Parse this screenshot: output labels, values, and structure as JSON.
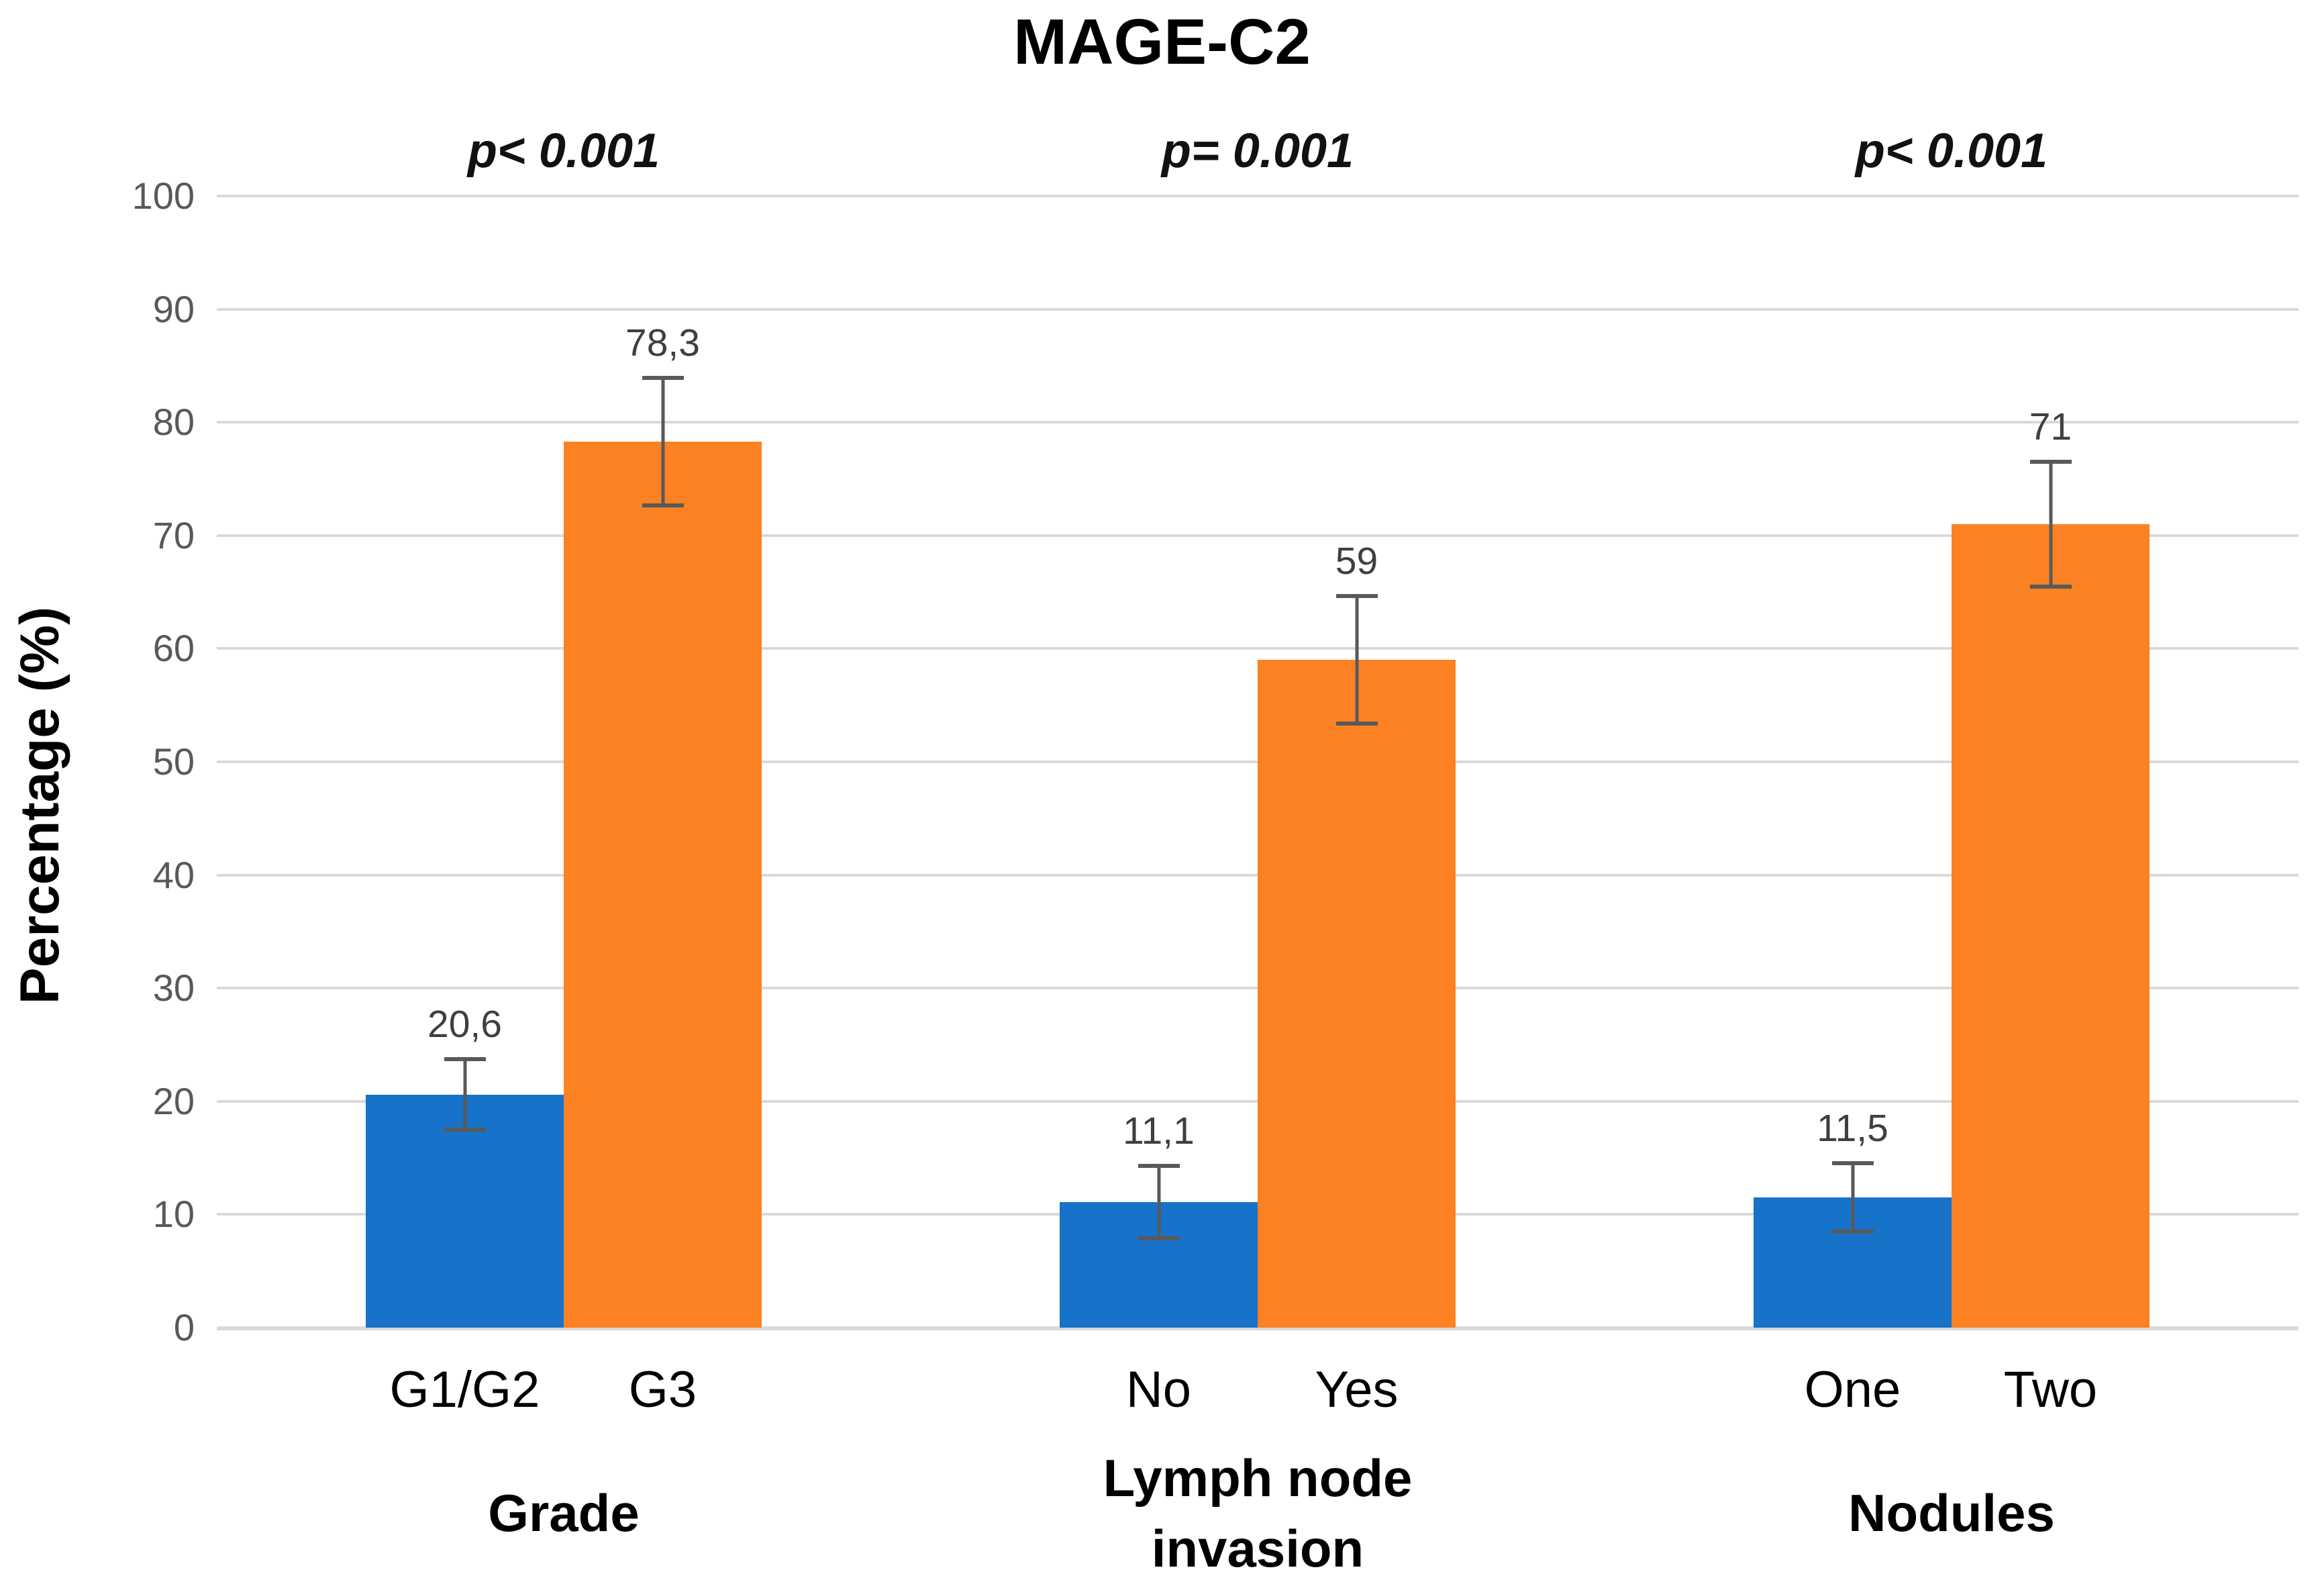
{
  "figure_title": "MAGE-C2",
  "y_axis": {
    "label": "Percentage (%)",
    "tick_labels": [
      "0",
      "10",
      "20",
      "30",
      "40",
      "50",
      "60",
      "70",
      "80",
      "90",
      "100"
    ]
  },
  "colors": {
    "bar_blue": "#1772c9",
    "bar_orange": "#fc8123",
    "gridline": "#d9d9d9",
    "error_bar": "#595959",
    "tick_text": "#595959",
    "value_label_text": "#3f3f3f"
  },
  "chart_data": {
    "type": "bar",
    "title": "MAGE-C2",
    "ylabel": "Percentage (%)",
    "xlabel": "",
    "ylim": [
      0,
      100
    ],
    "yticks": [
      0,
      10,
      20,
      30,
      40,
      50,
      60,
      70,
      80,
      90,
      100
    ],
    "grid": true,
    "legend": "none",
    "error_bars": true,
    "groups": [
      {
        "label": "Grade",
        "p_value": "p< 0.001",
        "bars": [
          {
            "category": "G1/G2",
            "value": 20.6,
            "label": "20,6",
            "color": "#1772c9",
            "error_low": 17.3,
            "error_high": 23.9
          },
          {
            "category": "G3",
            "value": 78.3,
            "label": "78,3",
            "color": "#fc8123",
            "error_low": 72.5,
            "error_high": 84.1
          }
        ]
      },
      {
        "label": "Lymph node invasion",
        "p_value": "p= 0.001",
        "bars": [
          {
            "category": "No",
            "value": 11.1,
            "label": "11,1",
            "color": "#1772c9",
            "error_low": 7.7,
            "error_high": 14.5
          },
          {
            "category": "Yes",
            "value": 59,
            "label": "59",
            "color": "#fc8123",
            "error_low": 53.2,
            "error_high": 64.8
          }
        ]
      },
      {
        "label": "Nodules",
        "p_value": "p< 0.001",
        "bars": [
          {
            "category": "One",
            "value": 11.5,
            "label": "11,5",
            "color": "#1772c9",
            "error_low": 8.3,
            "error_high": 14.7
          },
          {
            "category": "Two",
            "value": 71,
            "label": "71",
            "color": "#fc8123",
            "error_low": 65.3,
            "error_high": 76.7
          }
        ]
      }
    ]
  }
}
